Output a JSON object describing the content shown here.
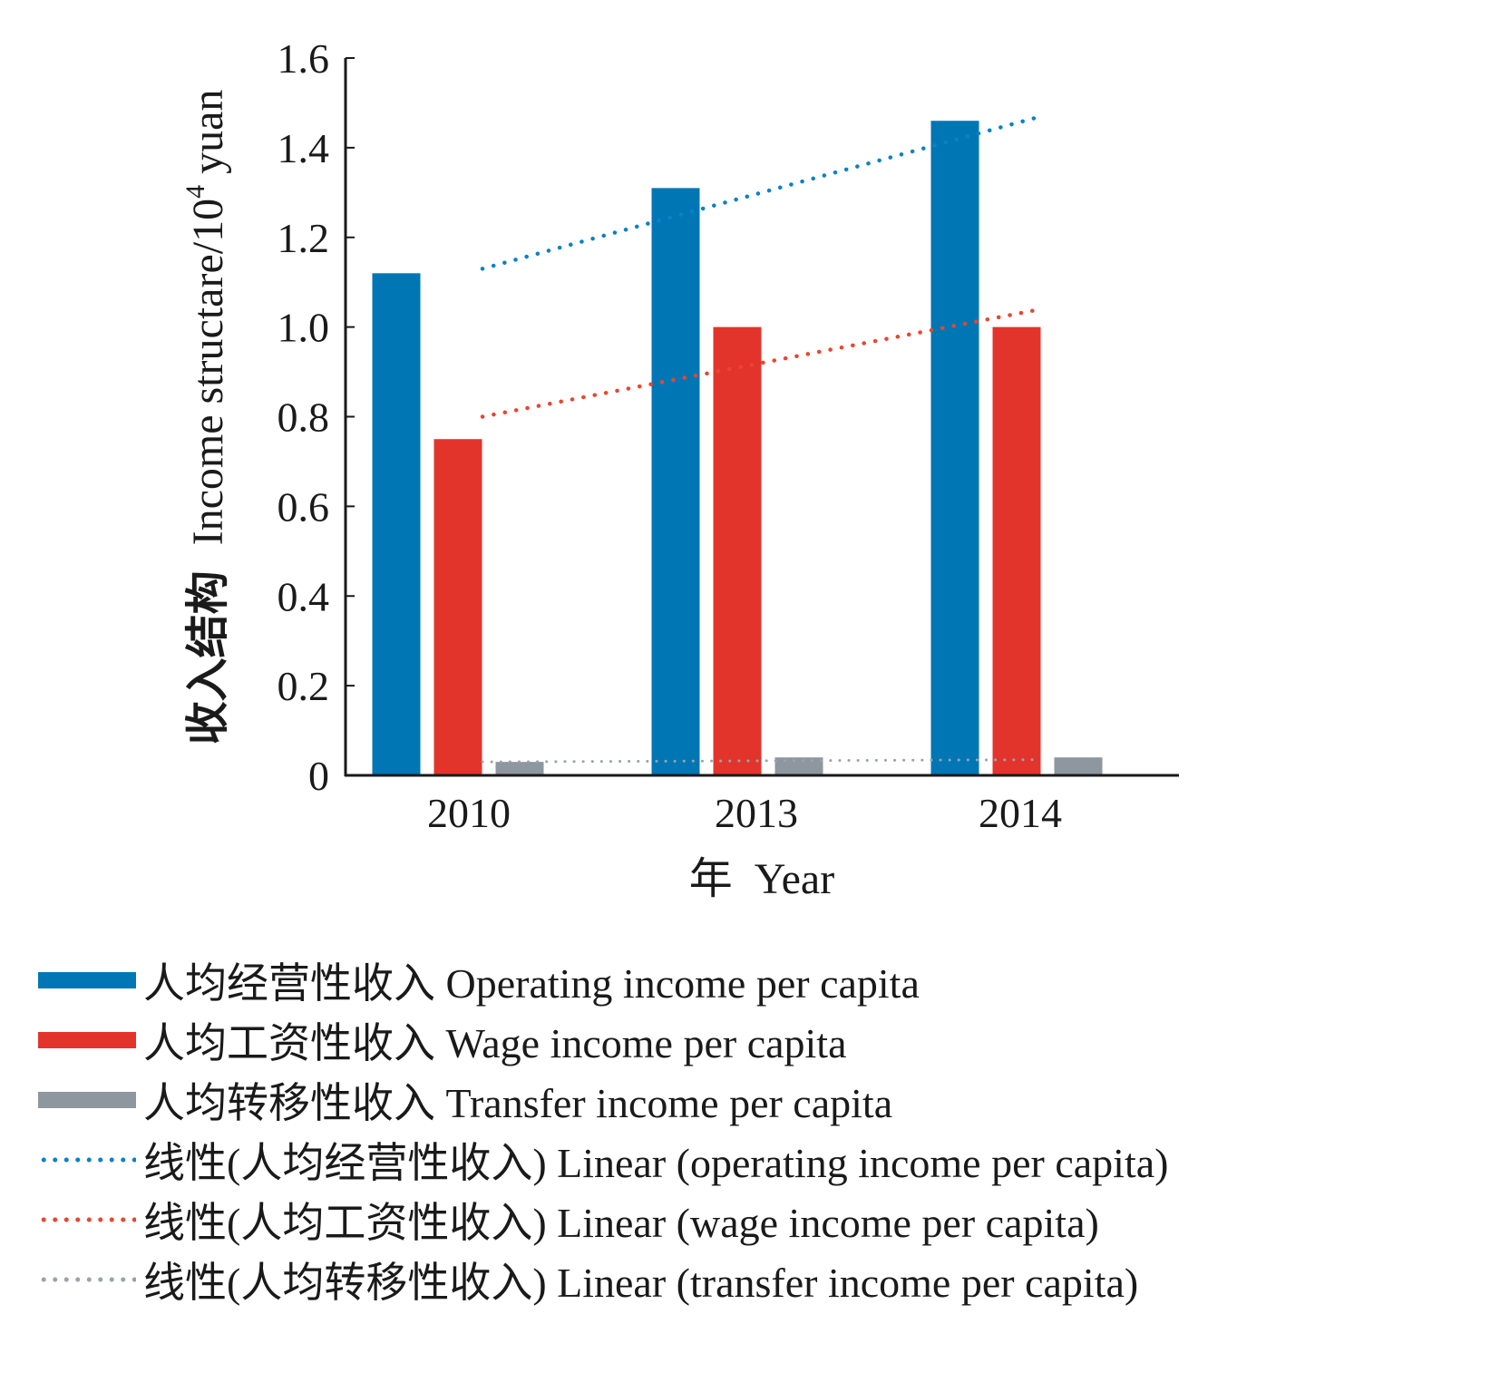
{
  "chart_data": {
    "type": "bar",
    "title": "",
    "xlabel": "年  Year",
    "ylabel_cn": "收入结构",
    "ylabel_en": "Income structare/10",
    "ylabel_sup": "4",
    "ylabel_unit": " yuan",
    "categories": [
      "2010",
      "2013",
      "2014"
    ],
    "ylim": [
      0,
      1.6
    ],
    "yticks": [
      0,
      0.2,
      0.4,
      0.6,
      0.8,
      1.0,
      1.2,
      1.4,
      1.6
    ],
    "ytick_labels": [
      "0",
      "0.2",
      "0.4",
      "0.6",
      "0.8",
      "1.0",
      "1.2",
      "1.4",
      "1.6"
    ],
    "grid": false,
    "legend_position": "bottom",
    "series": [
      {
        "name": "人均经营性收入 Operating income per capita",
        "color": "#0077b4",
        "values": [
          1.12,
          1.31,
          1.46
        ]
      },
      {
        "name": "人均工资性收入 Wage income per capita",
        "color": "#e3342c",
        "values": [
          0.75,
          1.0,
          1.0
        ]
      },
      {
        "name": "人均转移性收入 Transfer income per capita",
        "color": "#8e979f",
        "values": [
          0.03,
          0.04,
          0.04
        ]
      }
    ],
    "trendlines": [
      {
        "name": "线性(人均经营性收入) Linear (operating income per capita)",
        "color": "#0a82c4",
        "start": 1.13,
        "end": 1.47
      },
      {
        "name": "线性(人均工资性收入) Linear (wage income per capita)",
        "color": "#e8462e",
        "start": 0.8,
        "end": 1.04
      },
      {
        "name": "线性(人均转移性收入) Linear (transfer income per capita)",
        "color": "#9aa3ab",
        "start": 0.03,
        "end": 0.035
      }
    ]
  },
  "legend": [
    {
      "label": "人均经营性收入 Operating income per capita",
      "kind": "bar",
      "color": "#0077b4"
    },
    {
      "label": "人均工资性收入 Wage income per capita",
      "kind": "bar",
      "color": "#e3342c"
    },
    {
      "label": "人均转移性收入 Transfer income per capita",
      "kind": "bar",
      "color": "#8e979f"
    },
    {
      "label": "线性(人均经营性收入) Linear (operating income per capita)",
      "kind": "dotted",
      "color": "#0a82c4"
    },
    {
      "label": "线性(人均工资性收入) Linear (wage income per capita)",
      "kind": "dotted",
      "color": "#e8462e"
    },
    {
      "label": "线性(人均转移性收入) Linear (transfer income per capita)",
      "kind": "dotted",
      "color": "#9aa3ab"
    }
  ]
}
